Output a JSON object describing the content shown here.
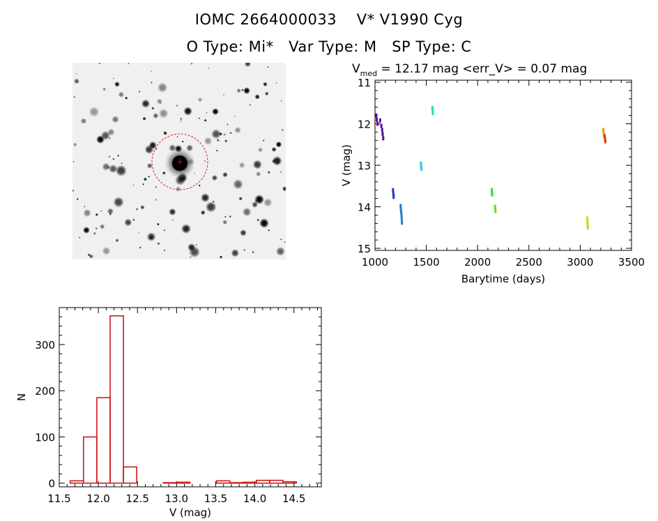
{
  "header": {
    "title_line_1": "IOMC 2664000033    V* V1990 Cyg",
    "title_line_2": "O Type: Mi*   Var Type: M   SP Type: C"
  },
  "colors": {
    "axis": "#000000",
    "histogram": "#cc1a1a",
    "aperture": "#e02020"
  },
  "sky_image": {
    "description": "finder-chart"
  },
  "chart_data": [
    {
      "type": "scatter",
      "name": "light-curve",
      "title_parts": {
        "v": "V",
        "sub": "med",
        "rest": " = 12.17 mag <err_V> = 0.07 mag"
      },
      "xlabel": "Barytime (days)",
      "ylabel": "V (mag)",
      "xlim": [
        1000,
        3500
      ],
      "ylim": [
        15.05,
        10.95
      ],
      "xticks": [
        1000,
        1500,
        2000,
        2500,
        3000,
        3500
      ],
      "xtick_labels": [
        "1000",
        "1500",
        "2000",
        "2500",
        "3000",
        "3500"
      ],
      "yticks": [
        11,
        12,
        13,
        14,
        15
      ],
      "ytick_labels": [
        "11",
        "12",
        "13",
        "14",
        "15"
      ],
      "series": [
        {
          "name": "g1",
          "color": "#5a0ea0",
          "points": [
            [
              1012,
              11.8
            ],
            [
              1018,
              11.9
            ],
            [
              1025,
              12.0
            ],
            [
              1050,
              11.92
            ],
            [
              1062,
              12.05
            ],
            [
              1070,
              12.15
            ],
            [
              1075,
              12.25
            ],
            [
              1080,
              12.35
            ]
          ]
        },
        {
          "name": "g2",
          "color": "#2a3cc8",
          "points": [
            [
              1175,
              13.6
            ],
            [
              1178,
              13.66
            ],
            [
              1180,
              13.72
            ],
            [
              1182,
              13.76
            ]
          ]
        },
        {
          "name": "g3",
          "color": "#1e7fd4",
          "points": [
            [
              1250,
              13.98
            ],
            [
              1252,
              14.05
            ],
            [
              1255,
              14.12
            ],
            [
              1258,
              14.2
            ],
            [
              1260,
              14.28
            ],
            [
              1262,
              14.38
            ]
          ]
        },
        {
          "name": "g4",
          "color": "#22d0e0",
          "points": [
            [
              1448,
              12.96
            ],
            [
              1450,
              13.02
            ],
            [
              1452,
              13.08
            ]
          ]
        },
        {
          "name": "g5",
          "color": "#22e0a0",
          "points": [
            [
              1560,
              11.62
            ],
            [
              1562,
              11.68
            ],
            [
              1564,
              11.74
            ]
          ]
        },
        {
          "name": "g6",
          "color": "#36d836",
          "points": [
            [
              2138,
              13.6
            ],
            [
              2140,
              13.66
            ],
            [
              2142,
              13.7
            ]
          ]
        },
        {
          "name": "g7",
          "color": "#72d820",
          "points": [
            [
              2170,
              14.0
            ],
            [
              2172,
              14.06
            ],
            [
              2174,
              14.1
            ]
          ]
        },
        {
          "name": "g8",
          "color": "#c8d810",
          "points": [
            [
              3068,
              14.28
            ],
            [
              3070,
              14.35
            ],
            [
              3072,
              14.42
            ],
            [
              3074,
              14.5
            ]
          ]
        },
        {
          "name": "g9",
          "color": "#e8a010",
          "points": [
            [
              3225,
              12.15
            ],
            [
              3228,
              12.22
            ],
            [
              3232,
              12.28
            ]
          ]
        },
        {
          "name": "g10",
          "color": "#e04010",
          "points": [
            [
              3238,
              12.3
            ],
            [
              3242,
              12.36
            ],
            [
              3245,
              12.42
            ]
          ]
        }
      ]
    },
    {
      "type": "bar",
      "name": "histogram",
      "xlabel": "V (mag)",
      "ylabel": "N",
      "xlim": [
        11.5,
        14.85
      ],
      "ylim": [
        -8,
        380
      ],
      "xticks": [
        11.5,
        12.0,
        12.5,
        13.0,
        13.5,
        14.0,
        14.5
      ],
      "xtick_labels": [
        "11.5",
        "12.0",
        "12.5",
        "13.0",
        "13.5",
        "14.0",
        "14.5"
      ],
      "yticks": [
        0,
        100,
        200,
        300
      ],
      "ytick_labels": [
        "0",
        "100",
        "200",
        "300"
      ],
      "bins": [
        {
          "x0": 11.64,
          "x1": 11.81,
          "value": 5
        },
        {
          "x0": 11.81,
          "x1": 11.98,
          "value": 100
        },
        {
          "x0": 11.98,
          "x1": 12.15,
          "value": 185
        },
        {
          "x0": 12.15,
          "x1": 12.32,
          "value": 362
        },
        {
          "x0": 12.32,
          "x1": 12.49,
          "value": 35
        },
        {
          "x0": 12.83,
          "x1": 13.0,
          "value": 1
        },
        {
          "x0": 13.0,
          "x1": 13.17,
          "value": 2
        },
        {
          "x0": 13.51,
          "x1": 13.68,
          "value": 5
        },
        {
          "x0": 13.68,
          "x1": 13.85,
          "value": 1
        },
        {
          "x0": 13.85,
          "x1": 14.02,
          "value": 2
        },
        {
          "x0": 14.02,
          "x1": 14.19,
          "value": 6
        },
        {
          "x0": 14.19,
          "x1": 14.36,
          "value": 6
        },
        {
          "x0": 14.36,
          "x1": 14.53,
          "value": 3
        }
      ]
    }
  ]
}
